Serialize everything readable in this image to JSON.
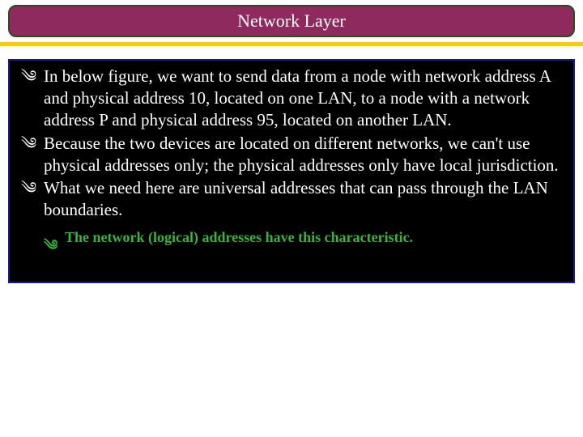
{
  "title": "Network Layer",
  "colors": {
    "title_band_bg": "#8e2a5e",
    "title_band_border": "#2e4a1e",
    "title_text": "#ffffff",
    "yellow_rule": "#ffcc00",
    "content_bg": "#000000",
    "content_border": "#1a1a8a",
    "body_text": "#ffffff",
    "sub_text": "#39b339",
    "page_bg": "#ffffff"
  },
  "typography": {
    "title_fontsize_pt": 17,
    "body_fontsize_pt": 16,
    "sub_fontsize_pt": 14,
    "font_family": "Times New Roman"
  },
  "bullets": {
    "glyph": "༄",
    "items": [
      {
        "text": "In below figure, we want to send data from a node with network address A and physical address 10, located on one LAN, to a node with a network address P and physical address 95, located on another LAN."
      },
      {
        "text": "Because the two devices are located on different networks, we can't use physical addresses only; the physical addresses only have local jurisdiction."
      },
      {
        "text": "What we need here are universal addresses that can pass through the LAN boundaries."
      }
    ],
    "sub_items": [
      {
        "text": "The network (logical) addresses have this characteristic."
      }
    ]
  }
}
